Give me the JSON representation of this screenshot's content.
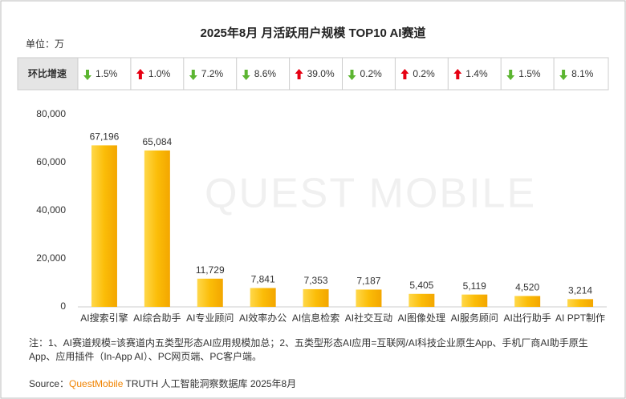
{
  "chart_data": {
    "type": "bar",
    "title": "2025年8月 月活跃用户规模 TOP10 AI赛道",
    "unit": "单位：万",
    "growth_header": "环比增速",
    "growth": [
      {
        "value": -1.5,
        "label": "1.5%"
      },
      {
        "value": 1.0,
        "label": "1.0%"
      },
      {
        "value": -7.2,
        "label": "7.2%"
      },
      {
        "value": -8.6,
        "label": "8.6%"
      },
      {
        "value": 39.0,
        "label": "39.0%"
      },
      {
        "value": -0.2,
        "label": "0.2%"
      },
      {
        "value": 0.2,
        "label": "0.2%"
      },
      {
        "value": 1.4,
        "label": "1.4%"
      },
      {
        "value": -1.5,
        "label": "1.5%"
      },
      {
        "value": -8.1,
        "label": "8.1%"
      }
    ],
    "categories": [
      "AI搜索引擎",
      "AI综合助手",
      "AI专业顾问",
      "AI效率办公",
      "AI信息检索",
      "AI社交互动",
      "AI图像处理",
      "AI服务顾问",
      "AI出行助手",
      "AI PPT制作"
    ],
    "values": [
      67196,
      65084,
      11729,
      7841,
      7353,
      7187,
      5405,
      5119,
      4520,
      3214
    ],
    "value_labels": [
      "67,196",
      "65,084",
      "11,729",
      "7,841",
      "7,353",
      "7,187",
      "5,405",
      "5,119",
      "4,520",
      "3,214"
    ],
    "color": "#fbbd08",
    "ylim": [
      0,
      80000
    ],
    "yticks": [
      0,
      {
        "value": 20000,
        "label": "20,000"
      },
      {
        "value": 40000,
        "label": "40,000"
      },
      {
        "value": 60000,
        "label": "60,000"
      },
      {
        "value": 80000,
        "label": "80,000"
      }
    ],
    "up_color": "#e60012",
    "down_color": "#5cb531",
    "watermark": "QUEST MOBILE",
    "note": "注：1、AI赛道规模=该赛道内五类型形态AI应用规模加总；2、五类型形态AI应用=互联网/AI科技企业原生App、手机厂商AI助手原生App、应用插件（In-App AI）、PC网页端、PC客户端。",
    "source_label": "Source：",
    "source_brand": "QuestMobile",
    "source_rest": " TRUTH 人工智能洞察数据库 2025年8月"
  }
}
